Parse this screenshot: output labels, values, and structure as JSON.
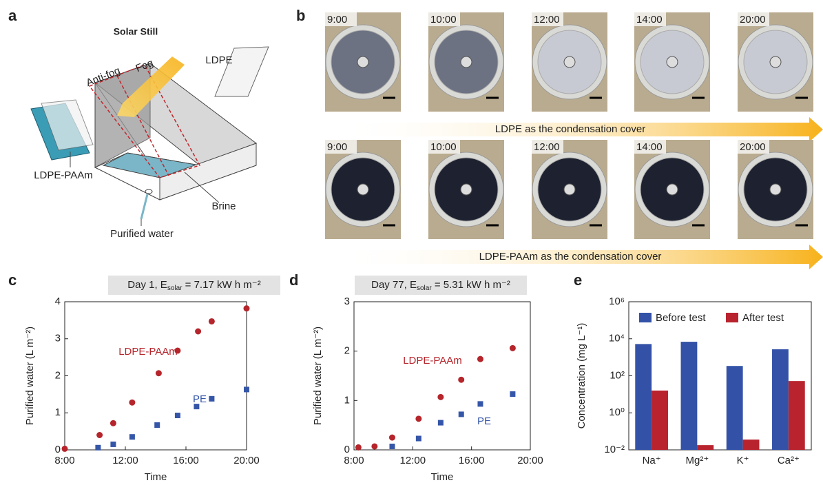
{
  "panel_labels": [
    "a",
    "b",
    "c",
    "d",
    "e"
  ],
  "diagram": {
    "title": "Solar Still",
    "labels": [
      "Anti-fog",
      "Fog",
      "LDPE",
      "LDPE-PAAm",
      "Brine",
      "Purified water"
    ]
  },
  "photos": {
    "rows": [
      {
        "times": [
          "9:00",
          "10:00",
          "12:00",
          "14:00",
          "20:00"
        ],
        "caption": "LDPE as the condensation cover"
      },
      {
        "times": [
          "9:00",
          "10:00",
          "12:00",
          "14:00",
          "20:00"
        ],
        "caption": "LDPE-PAAm as the condensation cover"
      }
    ]
  },
  "chart_data": [
    {
      "type": "scatter",
      "title": {
        "main": "Day 1, E",
        "sub": "solar",
        "rest": " = 7.17 kW h m⁻²"
      },
      "xlabel": "Time",
      "ylabel": "Purified water (L m⁻²)",
      "xlim": [
        8,
        20
      ],
      "xticks": [
        {
          "value": 8,
          "label": "8:00"
        },
        {
          "value": 12,
          "label": "12:00"
        },
        {
          "value": 16,
          "label": "16:00"
        },
        {
          "value": 20,
          "label": "20:00"
        }
      ],
      "ylim": [
        0,
        4
      ],
      "yticks": [
        0,
        1,
        2,
        3,
        4
      ],
      "series": [
        {
          "name": "LDPE-PAAm",
          "color": "#b5252b",
          "marker": "o",
          "x": [
            8,
            10.3,
            11.2,
            12.45,
            14.2,
            15.45,
            16.8,
            17.7,
            20
          ],
          "values": [
            0.03,
            0.4,
            0.72,
            1.28,
            2.07,
            2.68,
            3.2,
            3.47,
            3.82
          ]
        },
        {
          "name": "PE",
          "color": "#3556a8",
          "marker": "s",
          "x": [
            10.2,
            11.2,
            12.45,
            14.1,
            15.45,
            16.7,
            17.7,
            20
          ],
          "values": [
            0.06,
            0.15,
            0.35,
            0.67,
            0.93,
            1.17,
            1.38,
            1.63
          ]
        }
      ]
    },
    {
      "type": "scatter",
      "title": {
        "main": "Day 77, E",
        "sub": "solar",
        "rest": " = 5.31 kW h m⁻²"
      },
      "xlabel": "Time",
      "ylabel": "Purified water (L m⁻²)",
      "xlim": [
        8,
        20
      ],
      "xticks": [
        {
          "value": 8,
          "label": "8:00"
        },
        {
          "value": 12,
          "label": "12:00"
        },
        {
          "value": 16,
          "label": "16:00"
        },
        {
          "value": 20,
          "label": "20:00"
        }
      ],
      "ylim": [
        0,
        3
      ],
      "yticks": [
        0,
        1,
        2,
        3
      ],
      "series": [
        {
          "name": "LDPE-PAAm",
          "color": "#b5252b",
          "marker": "o",
          "x": [
            8.3,
            9.4,
            10.6,
            12.4,
            13.9,
            15.3,
            16.6,
            18.8
          ],
          "values": [
            0.05,
            0.07,
            0.25,
            0.63,
            1.07,
            1.42,
            1.84,
            2.06
          ]
        },
        {
          "name": "PE",
          "color": "#3556a8",
          "marker": "s",
          "x": [
            10.6,
            12.4,
            13.9,
            15.3,
            16.6,
            18.8
          ],
          "values": [
            0.07,
            0.23,
            0.55,
            0.72,
            0.93,
            1.13
          ]
        }
      ]
    },
    {
      "type": "bar",
      "ylabel": "Concentration (mg L⁻¹)",
      "yscale": "log",
      "legend": "upper right",
      "categories": [
        "Na⁺",
        "Mg²⁺",
        "K⁺",
        "Ca²⁺"
      ],
      "ylim": [
        0.01,
        1000000
      ],
      "yticks": [
        {
          "value": 0.01,
          "label": "10⁻²"
        },
        {
          "value": 1,
          "label": "10⁰"
        },
        {
          "value": 100,
          "label": "10²"
        },
        {
          "value": 10000,
          "label": "10⁴"
        },
        {
          "value": 1000000,
          "label": "10⁶"
        }
      ],
      "series": [
        {
          "name": "Before test",
          "color": "#3352a7",
          "values": [
            5200,
            6900,
            340,
            2700
          ]
        },
        {
          "name": "After test",
          "color": "#b8232e",
          "values": [
            16,
            0.018,
            0.036,
            52
          ]
        }
      ]
    }
  ]
}
